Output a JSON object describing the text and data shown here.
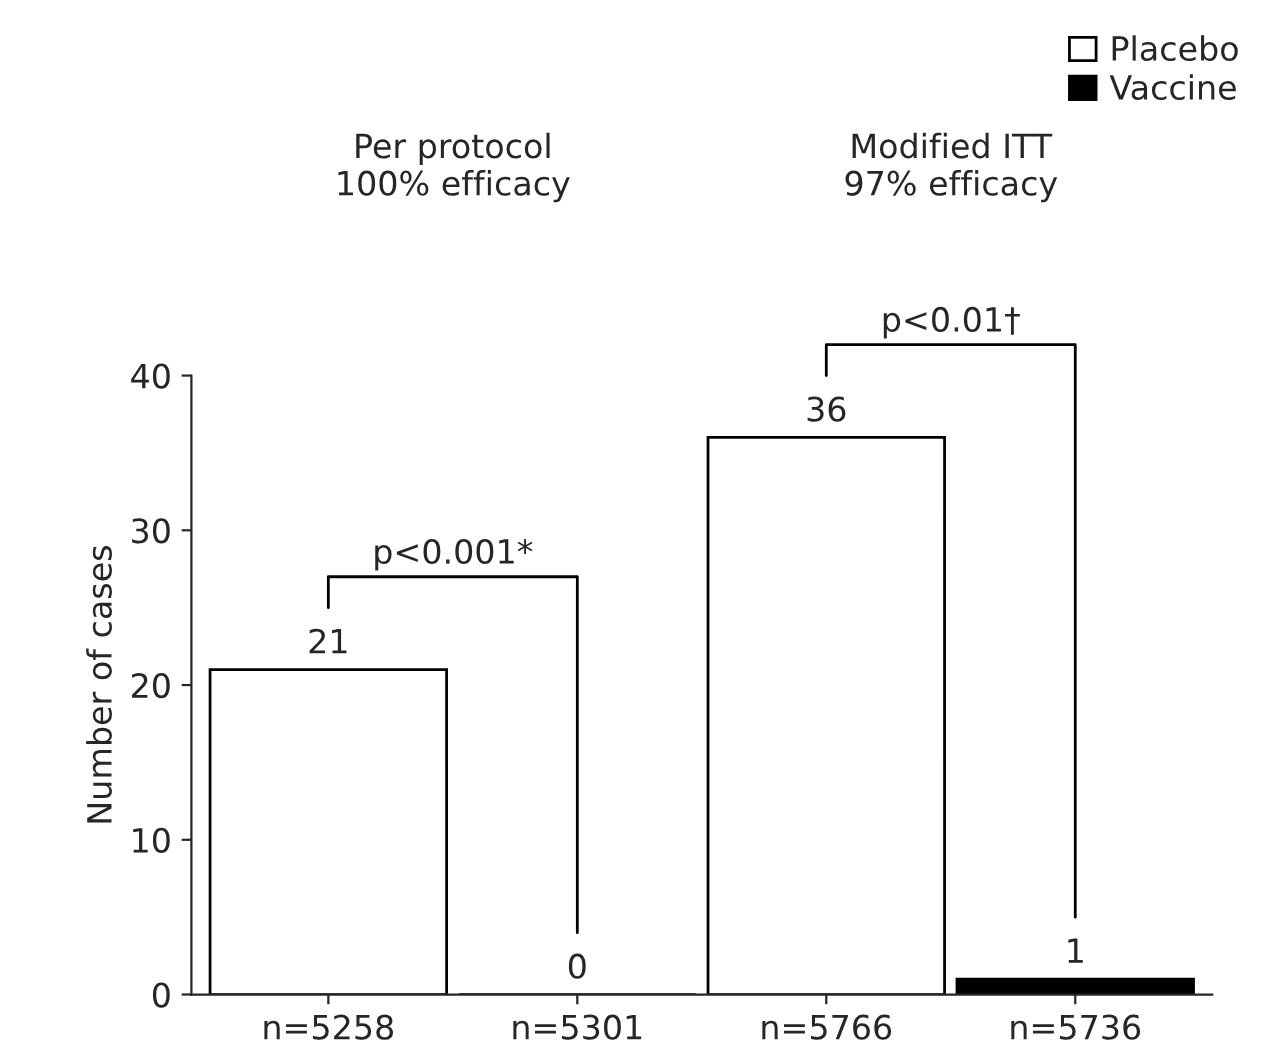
{
  "chart_data": {
    "type": "bar",
    "ylabel": "Number of cases",
    "categories": [
      "n=5258",
      "n=5301",
      "n=5766",
      "n=5736"
    ],
    "series": [
      {
        "name": "Placebo",
        "color": "#ffffff",
        "values": [
          21,
          null,
          36,
          null
        ]
      },
      {
        "name": "Vaccine",
        "color": "#000000",
        "values": [
          null,
          0,
          null,
          1
        ]
      }
    ],
    "ylim": [
      0,
      40
    ],
    "yticks": [
      0,
      10,
      20,
      30,
      40
    ],
    "data_labels": true,
    "legend": "top right",
    "grid": false,
    "annotations": [
      "Per protocol\n100% efficacy",
      "Modified ITT\n97% efficacy",
      "p<0.001*",
      "p<0.01†"
    ]
  }
}
